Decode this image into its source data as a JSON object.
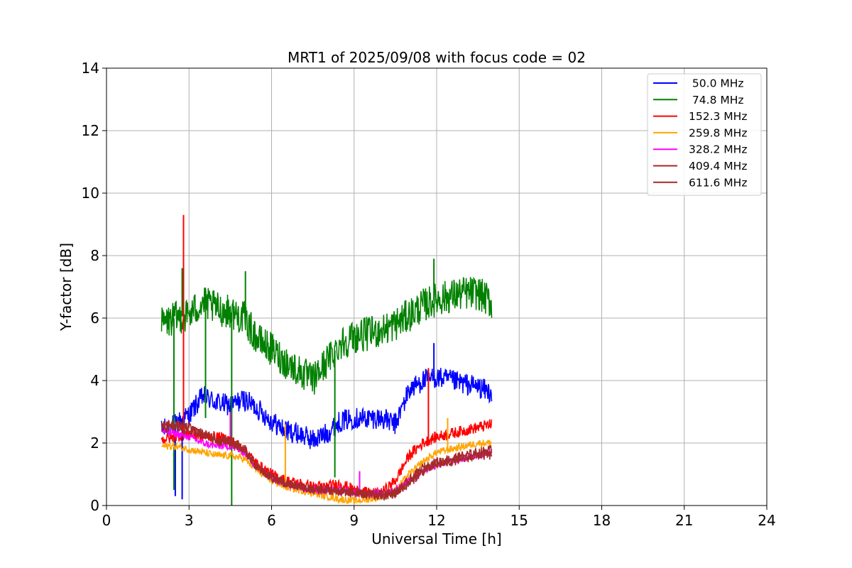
{
  "chart_data": {
    "type": "line",
    "title": "MRT1 of 2025/09/08 with focus code = 02",
    "xlabel": "Universal Time [h]",
    "ylabel": "Y-factor [dB]",
    "xlim": [
      0,
      24
    ],
    "ylim": [
      0,
      14
    ],
    "xticks": [
      0,
      3,
      6,
      9,
      12,
      15,
      18,
      21,
      24
    ],
    "yticks": [
      0,
      2,
      4,
      6,
      8,
      10,
      12,
      14
    ],
    "grid": true,
    "legend_position": "top-right",
    "series": [
      {
        "name": " 50.0 MHz",
        "color": "#0000ff",
        "x": [
          2.0,
          2.5,
          3.0,
          3.5,
          4.0,
          4.5,
          5.0,
          5.5,
          6.0,
          6.5,
          7.0,
          7.5,
          8.0,
          8.5,
          9.0,
          9.5,
          10.0,
          10.5,
          11.0,
          11.5,
          12.0,
          12.5,
          13.0,
          13.5,
          14.0
        ],
        "y": [
          2.4,
          2.6,
          2.9,
          3.5,
          3.3,
          3.2,
          3.4,
          3.1,
          2.7,
          2.4,
          2.3,
          2.1,
          2.3,
          2.7,
          2.8,
          2.8,
          2.8,
          2.6,
          3.7,
          4.0,
          4.1,
          4.0,
          3.9,
          3.8,
          3.6
        ],
        "spikes": [
          {
            "x": 2.5,
            "y": 0.3
          },
          {
            "x": 2.75,
            "y": 0.2
          },
          {
            "x": 11.9,
            "y": 5.2
          }
        ]
      },
      {
        "name": " 74.8 MHz",
        "color": "#008000",
        "x": [
          2.0,
          2.5,
          3.0,
          3.5,
          4.0,
          4.5,
          5.0,
          5.5,
          6.0,
          6.5,
          7.0,
          7.5,
          8.0,
          8.5,
          9.0,
          9.5,
          10.0,
          10.5,
          11.0,
          11.5,
          12.0,
          12.5,
          13.0,
          13.5,
          14.0
        ],
        "y": [
          5.8,
          6.0,
          6.1,
          6.5,
          6.3,
          6.2,
          6.0,
          5.3,
          5.0,
          4.6,
          4.3,
          4.0,
          4.6,
          5.2,
          5.4,
          5.5,
          5.6,
          5.8,
          6.1,
          6.4,
          6.6,
          6.7,
          6.8,
          6.8,
          6.5
        ],
        "spikes": [
          {
            "x": 2.45,
            "y": 0.5
          },
          {
            "x": 2.75,
            "y": 7.6
          },
          {
            "x": 3.6,
            "y": 2.8
          },
          {
            "x": 4.55,
            "y": 0.0
          },
          {
            "x": 5.05,
            "y": 7.5
          },
          {
            "x": 8.3,
            "y": 0.9
          },
          {
            "x": 11.9,
            "y": 7.9
          }
        ]
      },
      {
        "name": "152.3 MHz",
        "color": "#ff0000",
        "x": [
          2.0,
          2.5,
          3.0,
          3.5,
          4.0,
          4.5,
          5.0,
          5.5,
          6.0,
          6.5,
          7.0,
          7.5,
          8.0,
          8.5,
          9.0,
          9.5,
          10.0,
          10.5,
          11.0,
          11.5,
          12.0,
          12.5,
          13.0,
          13.5,
          14.0
        ],
        "y": [
          2.1,
          2.2,
          2.3,
          2.2,
          2.2,
          2.1,
          1.8,
          1.3,
          1.0,
          0.8,
          0.7,
          0.6,
          0.6,
          0.7,
          0.5,
          0.4,
          0.4,
          0.8,
          1.6,
          2.0,
          2.2,
          2.3,
          2.4,
          2.5,
          2.6
        ],
        "spikes": [
          {
            "x": 2.8,
            "y": 9.3
          },
          {
            "x": 11.7,
            "y": 4.4
          }
        ]
      },
      {
        "name": "259.8 MHz",
        "color": "#ffa500",
        "x": [
          2.0,
          2.5,
          3.0,
          3.5,
          4.0,
          4.5,
          5.0,
          5.5,
          6.0,
          6.5,
          7.0,
          7.5,
          8.0,
          8.5,
          9.0,
          9.5,
          10.0,
          10.5,
          11.0,
          11.5,
          12.0,
          12.5,
          13.0,
          13.5,
          14.0
        ],
        "y": [
          1.9,
          1.9,
          1.8,
          1.7,
          1.6,
          1.6,
          1.5,
          1.1,
          0.8,
          0.6,
          0.5,
          0.4,
          0.3,
          0.2,
          0.15,
          0.2,
          0.3,
          0.5,
          1.0,
          1.4,
          1.7,
          1.8,
          1.9,
          2.0,
          2.0
        ],
        "spikes": [
          {
            "x": 6.5,
            "y": 2.6
          },
          {
            "x": 12.4,
            "y": 2.8
          }
        ]
      },
      {
        "name": "328.2 MHz",
        "color": "#ff00ff",
        "x": [
          2.0,
          2.5,
          3.0,
          3.5,
          4.0,
          4.5,
          5.0,
          5.5,
          6.0,
          6.5,
          7.0,
          7.5,
          8.0,
          8.5,
          9.0,
          9.5,
          10.0,
          10.5,
          11.0,
          11.5,
          12.0,
          12.5,
          13.0,
          13.5,
          14.0
        ],
        "y": [
          2.4,
          2.3,
          2.2,
          2.0,
          1.9,
          1.9,
          1.7,
          1.2,
          0.9,
          0.7,
          0.6,
          0.5,
          0.5,
          0.5,
          0.4,
          0.4,
          0.4,
          0.5,
          0.8,
          1.1,
          1.3,
          1.4,
          1.5,
          1.6,
          1.7
        ],
        "spikes": [
          {
            "x": 4.5,
            "y": 3.0
          },
          {
            "x": 9.2,
            "y": 1.1
          }
        ]
      },
      {
        "name": "409.4 MHz",
        "color": "#a52a2a",
        "x": [
          2.0,
          2.5,
          3.0,
          3.5,
          4.0,
          4.5,
          5.0,
          5.5,
          6.0,
          6.5,
          7.0,
          7.5,
          8.0,
          8.5,
          9.0,
          9.5,
          10.0,
          10.5,
          11.0,
          11.5,
          12.0,
          12.5,
          13.0,
          13.5,
          14.0
        ],
        "y": [
          2.6,
          2.6,
          2.5,
          2.3,
          2.1,
          2.0,
          1.8,
          1.2,
          0.9,
          0.7,
          0.6,
          0.5,
          0.5,
          0.45,
          0.4,
          0.35,
          0.35,
          0.4,
          0.7,
          1.1,
          1.3,
          1.4,
          1.5,
          1.6,
          1.6
        ],
        "spikes": []
      },
      {
        "name": "611.6 MHz",
        "color": "#a52a2a",
        "x": [
          2.0,
          2.5,
          3.0,
          3.5,
          4.0,
          4.5,
          5.0,
          5.5,
          6.0,
          6.5,
          7.0,
          7.5,
          8.0,
          8.5,
          9.0,
          9.5,
          10.0,
          10.5,
          11.0,
          11.5,
          12.0,
          12.5,
          13.0,
          13.5,
          14.0
        ],
        "y": [
          2.5,
          2.5,
          2.4,
          2.3,
          2.1,
          2.1,
          1.8,
          1.2,
          0.9,
          0.7,
          0.6,
          0.5,
          0.5,
          0.45,
          0.4,
          0.35,
          0.3,
          0.4,
          0.8,
          1.2,
          1.4,
          1.5,
          1.6,
          1.7,
          1.8
        ],
        "spikes": []
      }
    ]
  }
}
